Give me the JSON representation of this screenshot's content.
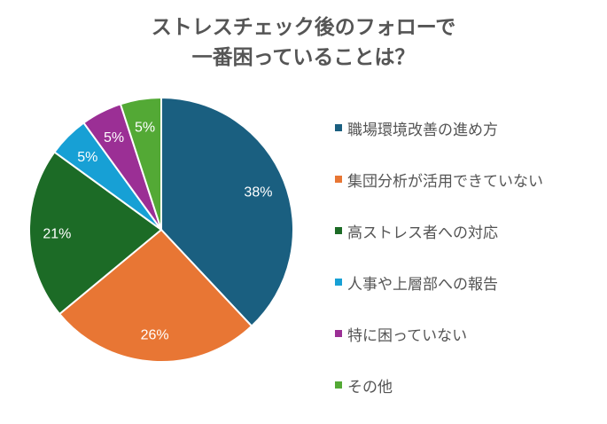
{
  "chart_data": {
    "type": "pie",
    "title": [
      "ストレスチェック後のフォローで",
      "一番困っていることは？"
    ],
    "categories": [
      "職場環境改善の進め方",
      "集団分析が活用できていない",
      "高ストレス者への対応",
      "人事や上層部への報告",
      "特に困っていない",
      "その他"
    ],
    "values": [
      38,
      26,
      21,
      5,
      5,
      5
    ],
    "data_labels": [
      "38%",
      "26%",
      "21%",
      "5%",
      "5%",
      "5%"
    ],
    "colors": [
      "#1a5f80",
      "#e87634",
      "#1c6b26",
      "#17a0d5",
      "#9b2f95",
      "#53a935"
    ],
    "legend_position": "right",
    "start": "top, clockwise"
  }
}
